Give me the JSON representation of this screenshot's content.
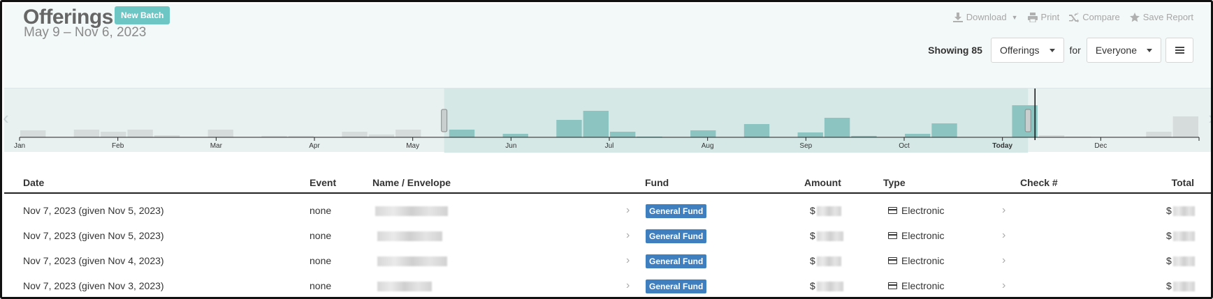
{
  "header": {
    "title": "Offerings",
    "new_batch_label": "New Batch",
    "date_range": "May 9 – Nov 6, 2023"
  },
  "toolbar": {
    "download_label": "Download",
    "print_label": "Print",
    "compare_label": "Compare",
    "save_report_label": "Save Report"
  },
  "filters": {
    "showing_label": "Showing 85",
    "type_select": "Offerings",
    "for_label": "for",
    "people_select": "Everyone"
  },
  "timeline": {
    "months": [
      "Jan",
      "Feb",
      "Mar",
      "Apr",
      "May",
      "Jun",
      "Jul",
      "Aug",
      "Sep",
      "Oct",
      "Today",
      "Dec"
    ],
    "selection_start_fraction": 0.36,
    "selection_end_fraction": 0.855
  },
  "table": {
    "columns": [
      "Date",
      "Event",
      "Name / Envelope",
      "Fund",
      "Amount",
      "Type",
      "Check #",
      "Total"
    ],
    "rows": [
      {
        "date": "Nov 7, 2023 (given Nov 5, 2023)",
        "event": "none",
        "fund": "General Fund",
        "amount_prefix": "$",
        "type": "Electronic",
        "total_prefix": "$"
      },
      {
        "date": "Nov 7, 2023 (given Nov 5, 2023)",
        "event": "none",
        "fund": "General Fund",
        "amount_prefix": "$",
        "type": "Electronic",
        "total_prefix": "$"
      },
      {
        "date": "Nov 7, 2023 (given Nov 4, 2023)",
        "event": "none",
        "fund": "General Fund",
        "amount_prefix": "$",
        "type": "Electronic",
        "total_prefix": "$"
      },
      {
        "date": "Nov 7, 2023 (given Nov 3, 2023)",
        "event": "none",
        "fund": "General Fund",
        "amount_prefix": "$",
        "type": "Electronic",
        "total_prefix": "$"
      }
    ]
  },
  "colors": {
    "accent": "#6ec6c4",
    "bar_selected": "#8cc4c2",
    "bar_unselected": "#d6dcdc",
    "fund_tag": "#3f7fbf"
  }
}
